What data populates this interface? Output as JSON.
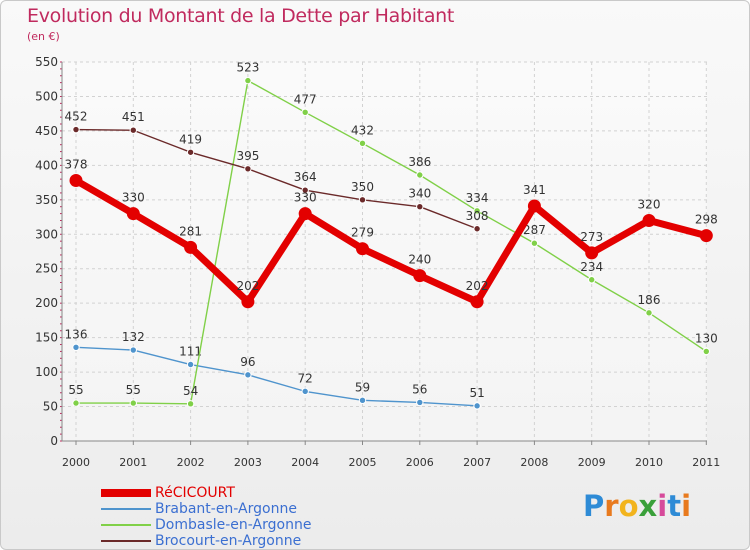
{
  "chart_data": {
    "type": "line",
    "title": "Evolution du Montant de la Dette par Habitant",
    "subtitle": "(en €)",
    "x": [
      "2000",
      "2001",
      "2002",
      "2003",
      "2004",
      "2005",
      "2006",
      "2007",
      "2008",
      "2009",
      "2010",
      "2011"
    ],
    "y_ticks": [
      "0",
      "50",
      "100",
      "150",
      "200",
      "250",
      "300",
      "350",
      "400",
      "450",
      "500",
      "550"
    ],
    "ylim": [
      0,
      550
    ],
    "grid": true,
    "legend_position": "bottom-left",
    "series": [
      {
        "name": "RéCICOURT",
        "color": "#e30000",
        "x": [
          "2000",
          "2001",
          "2002",
          "2003",
          "2004",
          "2005",
          "2006",
          "2007",
          "2008",
          "2009",
          "2010",
          "2011"
        ],
        "values": [
          378,
          330,
          281,
          202,
          330,
          279,
          240,
          202,
          341,
          273,
          320,
          298
        ],
        "labels": [
          "378",
          "330",
          "281",
          "202",
          "330",
          "279",
          "240",
          "202",
          "341",
          "273",
          "320",
          "298"
        ]
      },
      {
        "name": "Brabant-en-Argonne",
        "color": "#4f94cd",
        "x": [
          "2000",
          "2001",
          "2002",
          "2003",
          "2004",
          "2005",
          "2006",
          "2007"
        ],
        "values": [
          136,
          132,
          111,
          96,
          72,
          59,
          56,
          51
        ],
        "labels": [
          "136",
          "132",
          "111",
          "96",
          "72",
          "59",
          "56",
          "51"
        ]
      },
      {
        "name": "Dombasle-en-Argonne",
        "color": "#80d048",
        "x": [
          "2000",
          "2001",
          "2002",
          "2003",
          "2004",
          "2005",
          "2006",
          "2007",
          "2008",
          "2009",
          "2010",
          "2011"
        ],
        "values": [
          55,
          55,
          54,
          523,
          477,
          432,
          386,
          334,
          287,
          234,
          186,
          130
        ],
        "labels": [
          "55",
          "55",
          "54",
          "523",
          "477",
          "432",
          "386",
          "334",
          "287",
          "234",
          "186",
          "130"
        ]
      },
      {
        "name": "Brocourt-en-Argonne",
        "color": "#6b2a2a",
        "x": [
          "2000",
          "2001",
          "2002",
          "2003",
          "2004",
          "2005",
          "2006",
          "2007"
        ],
        "values": [
          452,
          451,
          419,
          395,
          364,
          350,
          340,
          308
        ],
        "labels": [
          "452",
          "451",
          "419",
          "395",
          "364",
          "350",
          "340",
          "308"
        ]
      }
    ]
  },
  "logo": {
    "letters": [
      "P",
      "r",
      "o",
      "x",
      "i",
      "t",
      "i"
    ],
    "colors": [
      "#2e8bd6",
      "#e87a1e",
      "#f2b41d",
      "#3aa03a",
      "#d64a9a",
      "#2e8bd6",
      "#e87a1e"
    ]
  }
}
